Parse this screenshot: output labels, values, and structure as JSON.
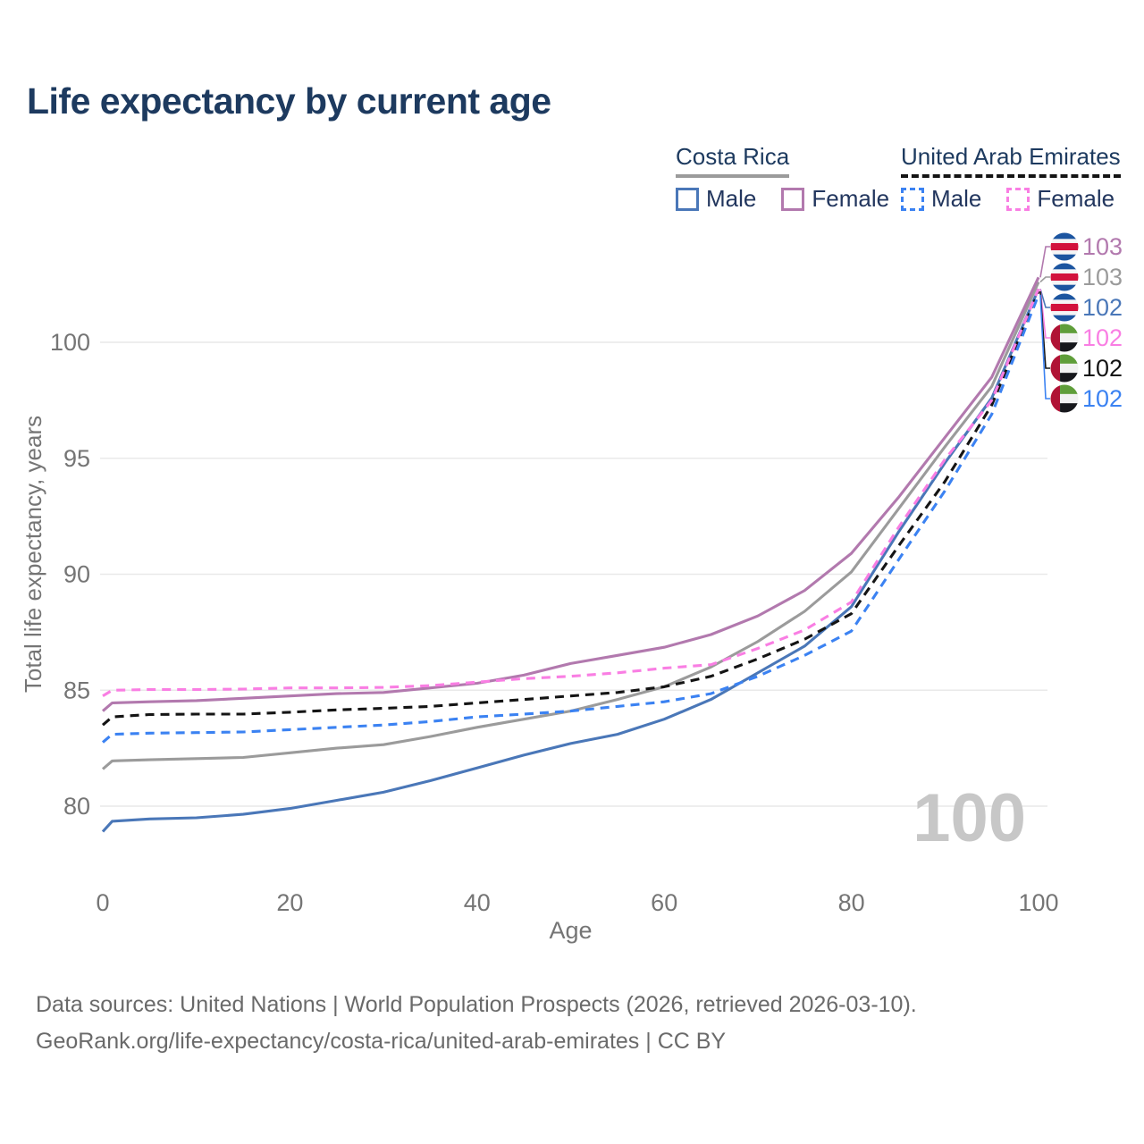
{
  "title": "Life expectancy by current age",
  "legend": {
    "groups": [
      {
        "label": "Costa Rica",
        "line_style": "solid",
        "line_color": "#9b9b9b",
        "items": [
          {
            "label": "Male",
            "color": "#4a77b8",
            "style": "solid"
          },
          {
            "label": "Female",
            "color": "#b279ae",
            "style": "solid"
          }
        ]
      },
      {
        "label": "United Arab Emirates",
        "line_style": "dashed",
        "line_color": "#141414",
        "items": [
          {
            "label": "Male",
            "color": "#3b82f2",
            "style": "dashed"
          },
          {
            "label": "Female",
            "color": "#f97ee3",
            "style": "dashed"
          }
        ]
      }
    ]
  },
  "watermark": "100",
  "footer": {
    "line1": "Data sources: United Nations | World Population Prospects (2026, retrieved 2026-03-10).",
    "line2": "GeoRank.org/life-expectancy/costa-rica/united-arab-emirates | CC BY"
  },
  "chart_data": {
    "type": "line",
    "title": "Life expectancy by current age",
    "xlabel": "Age",
    "ylabel": "Total life expectancy, years",
    "x_ticks": [
      0,
      20,
      40,
      60,
      80,
      100
    ],
    "y_ticks": [
      100,
      95,
      90,
      85,
      80
    ],
    "xlim": [
      0,
      100
    ],
    "ylim": [
      78,
      104
    ],
    "grid": "horizontal",
    "axis_text_color": "#757575",
    "gridline_color": "#e9e9e9",
    "watermark_color": "#c7c7c7",
    "ages": [
      0,
      1,
      5,
      10,
      15,
      20,
      25,
      30,
      35,
      40,
      45,
      50,
      55,
      60,
      65,
      70,
      75,
      80,
      85,
      90,
      95,
      100
    ],
    "series": [
      {
        "name": "Costa Rica — Female",
        "country": "Costa Rica",
        "sex": "Female",
        "color": "#b279ae",
        "dash": "solid",
        "flag": "cr",
        "end_label": "103",
        "values": [
          84.1,
          84.45,
          84.5,
          84.55,
          84.65,
          84.75,
          84.85,
          84.9,
          85.1,
          85.3,
          85.65,
          86.15,
          86.5,
          86.85,
          87.4,
          88.2,
          89.3,
          90.9,
          93.3,
          95.9,
          98.5,
          102.8
        ]
      },
      {
        "name": "Costa Rica — All",
        "country": "Costa Rica",
        "sex": "All",
        "color": "#9b9b9b",
        "dash": "solid",
        "flag": "cr",
        "end_label": "103",
        "values": [
          81.6,
          81.95,
          82.0,
          82.05,
          82.1,
          82.3,
          82.5,
          82.65,
          83.0,
          83.4,
          83.75,
          84.1,
          84.6,
          85.15,
          86.0,
          87.1,
          88.4,
          90.1,
          92.8,
          95.5,
          98.1,
          102.6
        ]
      },
      {
        "name": "Costa Rica — Male",
        "country": "Costa Rica",
        "sex": "Male",
        "color": "#4a77b8",
        "dash": "solid",
        "flag": "cr",
        "end_label": "102",
        "values": [
          78.9,
          79.35,
          79.45,
          79.5,
          79.65,
          79.9,
          80.25,
          80.6,
          81.1,
          81.65,
          82.2,
          82.7,
          83.1,
          83.75,
          84.6,
          85.75,
          86.9,
          88.6,
          91.8,
          94.8,
          97.6,
          102.3
        ]
      },
      {
        "name": "United Arab Emirates — Female",
        "country": "United Arab Emirates",
        "sex": "Female",
        "color": "#f97ee3",
        "dash": "dashed",
        "flag": "uae",
        "end_label": "102",
        "values": [
          84.75,
          85.0,
          85.03,
          85.03,
          85.05,
          85.1,
          85.1,
          85.12,
          85.2,
          85.35,
          85.5,
          85.6,
          85.75,
          85.95,
          86.1,
          86.8,
          87.6,
          88.8,
          92.0,
          94.95,
          97.5,
          102.3
        ]
      },
      {
        "name": "United Arab Emirates — All",
        "country": "United Arab Emirates",
        "sex": "All",
        "color": "#141414",
        "dash": "dashed",
        "flag": "uae",
        "end_label": "102",
        "values": [
          83.5,
          83.85,
          83.95,
          83.97,
          83.97,
          84.05,
          84.15,
          84.22,
          84.3,
          84.45,
          84.6,
          84.75,
          84.9,
          85.15,
          85.6,
          86.35,
          87.2,
          88.3,
          91.2,
          94.0,
          97.3,
          102.2
        ]
      },
      {
        "name": "United Arab Emirates — Male",
        "country": "United Arab Emirates",
        "sex": "Male",
        "color": "#3b82f2",
        "dash": "dashed",
        "flag": "uae",
        "end_label": "102",
        "values": [
          82.75,
          83.1,
          83.15,
          83.17,
          83.2,
          83.3,
          83.4,
          83.5,
          83.65,
          83.85,
          83.97,
          84.1,
          84.3,
          84.5,
          84.85,
          85.6,
          86.5,
          87.55,
          90.6,
          93.6,
          96.9,
          102.05
        ]
      }
    ],
    "flag_colors": {
      "cr": {
        "blue": "#1c55a0",
        "white": "#f5f5f5",
        "red": "#d2123c"
      },
      "uae": {
        "red": "#b01335",
        "green": "#5f9e3a",
        "white": "#f2f2f2",
        "black": "#17181c"
      }
    }
  }
}
